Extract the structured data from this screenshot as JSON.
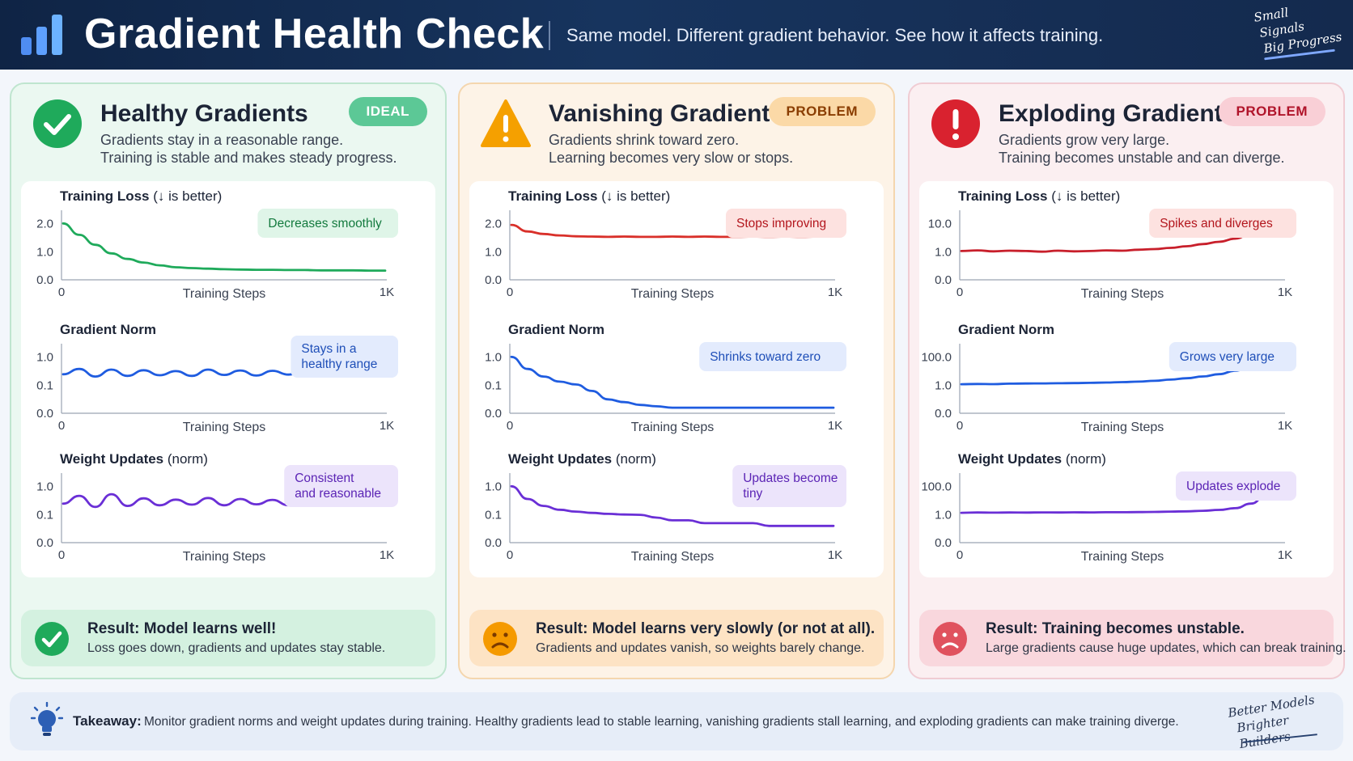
{
  "header": {
    "title": "Gradient Health Check",
    "subtitle": "Same model. Different gradient behavior. See how it affects training.",
    "hand_lines": [
      "Small",
      "Signals",
      "Big Progress"
    ]
  },
  "panels": [
    {
      "id": "healthy",
      "title": "Healthy Gradients",
      "badge": "IDEAL",
      "desc_lines": [
        "Gradients stay in a reasonable range.",
        "Training is stable and makes steady progress."
      ],
      "result_title": "Result:",
      "result_title_rest": "Model learns well!",
      "result_text": "Loss goes down, gradients and updates stay stable.",
      "accent": "#2fb36a"
    },
    {
      "id": "vanishing",
      "title": "Vanishing Gradients",
      "badge": "PROBLEM",
      "desc_lines": [
        "Gradients shrink toward zero.",
        "Learning becomes very slow or stops."
      ],
      "result_title": "Result:",
      "result_title_rest": "Model learns very slowly (or not at all).",
      "result_text": "Gradients and updates vanish, so weights barely change.",
      "accent": "#f5a000"
    },
    {
      "id": "exploding",
      "title": "Exploding Gradients",
      "badge": "PROBLEM",
      "desc_lines": [
        "Gradients grow very large.",
        "Training becomes unstable and can diverge."
      ],
      "result_title": "Result:",
      "result_title_rest": "Training becomes unstable.",
      "result_text": "Large gradients cause huge updates, which can break training.",
      "accent": "#d9222f"
    }
  ],
  "chart_data": [
    {
      "panel": "healthy",
      "type": "line",
      "title_bold": "Training Loss",
      "title_rest": " (↓ is better)",
      "xlabel": "Training Steps",
      "xticks": [
        "0",
        "1K"
      ],
      "yticks": [
        "0.0",
        "1.0",
        "2.0"
      ],
      "ylim": [
        0,
        2.4
      ],
      "color": "#1faa5b",
      "annotation": [
        "Decreases smoothly"
      ],
      "x": [
        0,
        50,
        100,
        150,
        200,
        250,
        300,
        350,
        400,
        450,
        500,
        550,
        600,
        650,
        700,
        750,
        800,
        850,
        900,
        950,
        1000
      ],
      "y": [
        2.0,
        1.6,
        1.25,
        0.95,
        0.75,
        0.62,
        0.52,
        0.45,
        0.42,
        0.4,
        0.38,
        0.37,
        0.36,
        0.36,
        0.35,
        0.35,
        0.34,
        0.34,
        0.34,
        0.33,
        0.33
      ]
    },
    {
      "panel": "healthy",
      "type": "line",
      "title_bold": "Gradient Norm",
      "title_rest": "",
      "xlabel": "Training Steps",
      "xticks": [
        "0",
        "1K"
      ],
      "yticks": [
        "0.0",
        "0.1",
        "1.0"
      ],
      "ylim": [
        0,
        1.3
      ],
      "color": "#1f5ce0",
      "annotation": [
        "Stays in a",
        "healthy range"
      ],
      "x": [
        0,
        50,
        100,
        150,
        200,
        250,
        300,
        350,
        400,
        450,
        500,
        550,
        600,
        650,
        700,
        750,
        800,
        850,
        900,
        950,
        1000
      ],
      "y": [
        0.45,
        0.62,
        0.38,
        0.6,
        0.4,
        0.58,
        0.42,
        0.55,
        0.4,
        0.6,
        0.43,
        0.57,
        0.41,
        0.56,
        0.44,
        0.58,
        0.42,
        0.55,
        0.45,
        0.58,
        0.45
      ]
    },
    {
      "panel": "healthy",
      "type": "line",
      "title_bold": "Weight Updates",
      "title_rest": " (norm)",
      "xlabel": "Training Steps",
      "xticks": [
        "0",
        "1K"
      ],
      "yticks": [
        "0.0",
        "0.1",
        "1.0"
      ],
      "ylim": [
        0,
        1.3
      ],
      "color": "#6a2fd6",
      "annotation": [
        "Consistent",
        "and reasonable"
      ],
      "x": [
        0,
        50,
        100,
        150,
        200,
        250,
        300,
        350,
        400,
        450,
        500,
        550,
        600,
        650,
        700,
        750,
        800,
        850,
        900,
        950,
        1000
      ],
      "y": [
        0.45,
        0.7,
        0.35,
        0.75,
        0.38,
        0.62,
        0.4,
        0.58,
        0.42,
        0.63,
        0.4,
        0.6,
        0.43,
        0.57,
        0.4,
        0.6,
        0.42,
        0.55,
        0.4,
        0.62,
        0.45
      ]
    },
    {
      "panel": "vanishing",
      "type": "line",
      "title_bold": "Training Loss",
      "title_rest": " (↓ is better)",
      "xlabel": "Training Steps",
      "xticks": [
        "0",
        "1K"
      ],
      "yticks": [
        "0.0",
        "1.0",
        "2.0"
      ],
      "ylim": [
        0,
        2.4
      ],
      "color": "#d9302a",
      "annotation": [
        "Stops improving"
      ],
      "x": [
        0,
        50,
        100,
        150,
        200,
        250,
        300,
        350,
        400,
        450,
        500,
        550,
        600,
        650,
        700,
        750,
        800,
        850,
        900,
        950,
        1000
      ],
      "y": [
        1.95,
        1.72,
        1.63,
        1.58,
        1.55,
        1.54,
        1.53,
        1.54,
        1.53,
        1.53,
        1.54,
        1.53,
        1.54,
        1.53,
        1.53,
        1.54,
        1.53,
        1.54,
        1.53,
        1.54,
        1.54
      ]
    },
    {
      "panel": "vanishing",
      "type": "line",
      "title_bold": "Gradient Norm",
      "title_rest": "",
      "xlabel": "Training Steps",
      "xticks": [
        "0",
        "1K"
      ],
      "yticks": [
        "0.0",
        "0.1",
        "1.0"
      ],
      "ylim": [
        0,
        1.3
      ],
      "color": "#1f5ce0",
      "annotation": [
        "Shrinks toward zero"
      ],
      "x": [
        0,
        50,
        100,
        150,
        200,
        250,
        300,
        350,
        400,
        450,
        500,
        550,
        600,
        650,
        700,
        750,
        800,
        850,
        900,
        950,
        1000
      ],
      "y": [
        1.0,
        0.62,
        0.38,
        0.22,
        0.13,
        0.08,
        0.05,
        0.04,
        0.03,
        0.025,
        0.02,
        0.02,
        0.02,
        0.02,
        0.02,
        0.02,
        0.02,
        0.02,
        0.02,
        0.02,
        0.02
      ]
    },
    {
      "panel": "vanishing",
      "type": "line",
      "title_bold": "Weight Updates",
      "title_rest": " (norm)",
      "xlabel": "Training Steps",
      "xticks": [
        "0",
        "1K"
      ],
      "yticks": [
        "0.0",
        "0.1",
        "1.0"
      ],
      "ylim": [
        0,
        1.3
      ],
      "color": "#6a2fd6",
      "annotation": [
        "Updates become",
        "tiny"
      ],
      "x": [
        0,
        50,
        100,
        150,
        200,
        250,
        300,
        350,
        400,
        450,
        500,
        550,
        600,
        650,
        700,
        750,
        800,
        850,
        900,
        950,
        1000
      ],
      "y": [
        1.0,
        0.6,
        0.38,
        0.26,
        0.2,
        0.16,
        0.13,
        0.11,
        0.1,
        0.09,
        0.08,
        0.08,
        0.07,
        0.07,
        0.07,
        0.07,
        0.06,
        0.06,
        0.06,
        0.06,
        0.06
      ]
    },
    {
      "panel": "exploding",
      "type": "line",
      "title_bold": "Training Loss",
      "title_rest": " (↓ is better)",
      "xlabel": "Training Steps",
      "xticks": [
        "0",
        "1K"
      ],
      "yticks": [
        "0.0",
        "1.0",
        "10.0"
      ],
      "ylim": [
        0,
        13
      ],
      "color": "#c81f2b",
      "annotation": [
        "Spikes and diverges"
      ],
      "x": [
        0,
        50,
        100,
        150,
        200,
        250,
        300,
        350,
        400,
        450,
        500,
        550,
        600,
        650,
        700,
        750,
        800,
        850,
        900,
        950,
        1000
      ],
      "y": [
        1.3,
        1.5,
        1.2,
        1.4,
        1.3,
        1.1,
        1.4,
        1.2,
        1.3,
        1.5,
        1.4,
        1.7,
        1.9,
        2.3,
        2.8,
        3.5,
        4.2,
        5.2,
        6.8,
        8.8,
        11.5
      ]
    },
    {
      "panel": "exploding",
      "type": "line",
      "title_bold": "Gradient Norm",
      "title_rest": "",
      "xlabel": "Training Steps",
      "xticks": [
        "0",
        "1K"
      ],
      "yticks": [
        "0.0",
        "1.0",
        "100.0"
      ],
      "ylim": [
        0,
        130
      ],
      "color": "#1f5ce0",
      "annotation": [
        "Grows very large"
      ],
      "x": [
        0,
        50,
        100,
        150,
        200,
        250,
        300,
        350,
        400,
        450,
        500,
        550,
        600,
        650,
        700,
        750,
        800,
        850,
        900,
        950,
        1000
      ],
      "y": [
        5,
        6,
        5.5,
        7,
        7.5,
        8,
        8.5,
        9,
        10,
        11,
        12.5,
        14,
        17,
        21,
        26,
        32,
        40,
        52,
        66,
        85,
        115
      ]
    },
    {
      "panel": "exploding",
      "type": "line",
      "title_bold": "Weight Updates",
      "title_rest": " (norm)",
      "xlabel": "Training Steps",
      "xticks": [
        "0",
        "1K"
      ],
      "yticks": [
        "0.0",
        "1.0",
        "100.0"
      ],
      "ylim": [
        0,
        130
      ],
      "color": "#6a2fd6",
      "annotation": [
        "Updates explode"
      ],
      "x": [
        0,
        50,
        100,
        150,
        200,
        250,
        300,
        350,
        400,
        450,
        500,
        550,
        600,
        650,
        700,
        750,
        800,
        850,
        900,
        950,
        1000
      ],
      "y": [
        8,
        9,
        8.5,
        9,
        8.8,
        9.2,
        9,
        9.5,
        9.3,
        9.8,
        10,
        10.5,
        11,
        12,
        13,
        15,
        18,
        24,
        40,
        75,
        115
      ]
    }
  ],
  "takeaway": {
    "label": "Takeaway:",
    "text": "Monitor gradient norms and weight updates during training. Healthy gradients lead to stable learning, vanishing gradients stall learning, and exploding gradients can make training diverge.",
    "hand_lines": [
      "Better Models",
      "Brighter Builders"
    ]
  }
}
